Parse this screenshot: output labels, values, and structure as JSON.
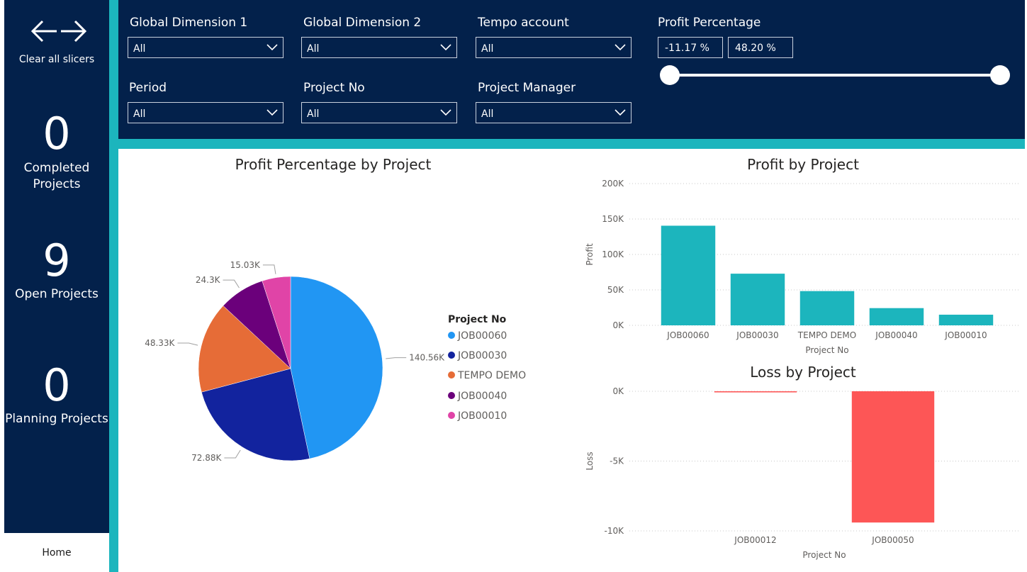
{
  "sidebar": {
    "clear_label": "Clear all slicers",
    "kpis": [
      {
        "value": "0",
        "label_line1": "Completed",
        "label_line2": "Projects"
      },
      {
        "value": "9",
        "label_line1": "Open Projects"
      },
      {
        "value": "0",
        "label_line1": "Planning Projects"
      }
    ],
    "home_label": "Home"
  },
  "filters": {
    "global_dim_1": {
      "title": "Global Dimension 1",
      "value": "All"
    },
    "global_dim_2": {
      "title": "Global Dimension 2",
      "value": "All"
    },
    "tempo_account": {
      "title": "Tempo account",
      "value": "All"
    },
    "period": {
      "title": "Period",
      "value": "All"
    },
    "project_no": {
      "title": "Project No",
      "value": "All"
    },
    "project_manager": {
      "title": "Project Manager",
      "value": "All"
    },
    "profit_percentage": {
      "title": "Profit Percentage",
      "min_text": "-11.17 %",
      "max_text": "48.20 %"
    }
  },
  "colors": {
    "navy": "#03214b",
    "teal": "#1cb5bd",
    "loss_red": "#fd5656",
    "job60": "#2196f3",
    "job30": "#12239e",
    "tempo": "#e66c37",
    "job40": "#6b007b",
    "job10": "#e044a7"
  },
  "chart_data": [
    {
      "type": "pie",
      "title": "Profit Percentage by Project",
      "legend_title": "Project No",
      "labels": [
        "JOB00060",
        "JOB00030",
        "TEMPO DEMO",
        "JOB00040",
        "JOB00010"
      ],
      "values": [
        140.56,
        72.88,
        48.33,
        24.3,
        15.03
      ],
      "data_labels": [
        "140.56K",
        "72.88K",
        "48.33K",
        "24.3K",
        "15.03K"
      ],
      "colors": [
        "#2196f3",
        "#12239e",
        "#e66c37",
        "#6b007b",
        "#e044a7"
      ]
    },
    {
      "type": "bar",
      "title": "Profit by Project",
      "categories": [
        "JOB00060",
        "JOB00030",
        "TEMPO DEMO",
        "JOB00040",
        "JOB00010"
      ],
      "values": [
        140560,
        72880,
        48330,
        24300,
        15030
      ],
      "xlabel": "Project No",
      "ylabel": "Profit",
      "ylim": [
        0,
        200000
      ],
      "yticks": [
        0,
        50000,
        100000,
        150000,
        200000
      ],
      "ytick_labels": [
        "0K",
        "50K",
        "100K",
        "150K",
        "200K"
      ],
      "color": "#1cb5bd"
    },
    {
      "type": "bar",
      "title": "Loss by Project",
      "categories": [
        "JOB00012",
        "JOB00050"
      ],
      "values": [
        -80,
        -9400
      ],
      "xlabel": "Project No",
      "ylabel": "Loss",
      "ylim": [
        -10000,
        0
      ],
      "yticks": [
        0,
        -5000,
        -10000
      ],
      "ytick_labels": [
        "0K",
        "-5K",
        "-10K"
      ],
      "color": "#fd5656"
    }
  ]
}
